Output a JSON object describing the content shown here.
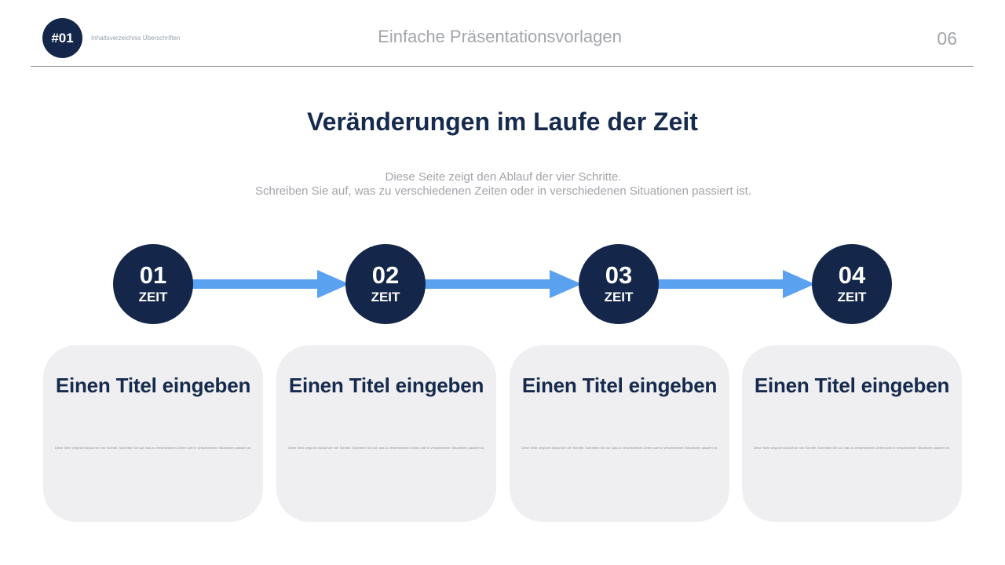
{
  "header": {
    "badge": "#01",
    "section_label": "Inhaltsverzeichnis Überschriften",
    "title": "Einfache Präsentationsvorlagen",
    "page_number": "06"
  },
  "main": {
    "title": "Veränderungen im Laufe der Zeit",
    "subtitle_line1": "Diese Seite zeigt den Ablauf der vier Schritte.",
    "subtitle_line2": "Schreiben Sie auf, was zu verschiedenen Zeiten oder in verschiedenen Situationen passiert ist."
  },
  "colors": {
    "navy": "#14264a",
    "arrow_blue": "#5aa2ef",
    "card_bg": "#efeff1"
  },
  "steps": [
    {
      "number": "01",
      "label": "ZEIT"
    },
    {
      "number": "02",
      "label": "ZEIT"
    },
    {
      "number": "03",
      "label": "ZEIT"
    },
    {
      "number": "04",
      "label": "ZEIT"
    }
  ],
  "cards": [
    {
      "title": "Einen Titel eingeben",
      "text": "Diese Seite zeigt den Ablauf der vier Schritte.  Schreiben Sie auf, was zu verschiedenen Zeiten oder in verschiedenen Situationen passiert ist."
    },
    {
      "title": "Einen Titel eingeben",
      "text": "Diese Seite zeigt den Ablauf der vier Schritte.  Schreiben Sie auf, was zu verschiedenen Zeiten oder in verschiedenen Situationen passiert ist."
    },
    {
      "title": "Einen Titel eingeben",
      "text": "Diese Seite zeigt den Ablauf der vier Schritte.  Schreiben Sie auf, was zu verschiedenen Zeiten oder in verschiedenen Situationen passiert ist."
    },
    {
      "title": "Einen Titel eingeben",
      "text": "Diese Seite zeigt den Ablauf der vier Schritte.  Schreiben Sie auf, was zu verschiedenen Zeiten oder in verschiedenen Situationen passiert ist."
    }
  ]
}
